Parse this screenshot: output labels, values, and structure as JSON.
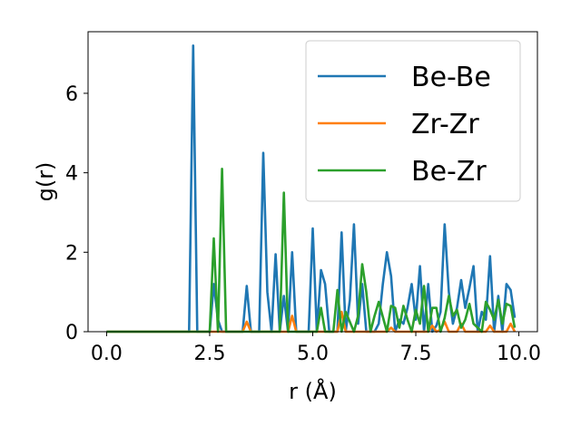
{
  "chart_data": {
    "type": "line",
    "title": "",
    "xlabel": "r (Å)",
    "ylabel": "g(r)",
    "xlim": [
      -0.45,
      10.45
    ],
    "ylim": [
      0,
      7.55
    ],
    "xticks": [
      "0.0",
      "2.5",
      "5.0",
      "7.5",
      "10.0"
    ],
    "xtick_values": [
      0,
      2.5,
      5,
      7.5,
      10
    ],
    "yticks": [
      "0",
      "2",
      "4",
      "6"
    ],
    "ytick_values": [
      0,
      2,
      4,
      6
    ],
    "grid": false,
    "legend_position": "top-right",
    "series": [
      {
        "name": "Be-Be",
        "color": "#1f77b4",
        "x": [
          0,
          2.0,
          2.1,
          2.2,
          2.5,
          2.6,
          2.7,
          2.8,
          3.3,
          3.4,
          3.5,
          3.7,
          3.8,
          3.9,
          4.0,
          4.1,
          4.2,
          4.3,
          4.4,
          4.5,
          4.6,
          4.9,
          5.0,
          5.1,
          5.2,
          5.3,
          5.4,
          5.6,
          5.7,
          5.8,
          5.9,
          6.0,
          6.1,
          6.2,
          6.3,
          6.4,
          6.5,
          6.6,
          6.7,
          6.8,
          6.9,
          7.0,
          7.1,
          7.2,
          7.3,
          7.4,
          7.5,
          7.6,
          7.7,
          7.8,
          7.9,
          8.0,
          8.1,
          8.2,
          8.3,
          8.4,
          8.5,
          8.6,
          8.7,
          8.8,
          8.9,
          9.0,
          9.1,
          9.2,
          9.3,
          9.4,
          9.5,
          9.6,
          9.7,
          9.8,
          9.9
        ],
        "y": [
          0,
          0,
          7.2,
          0,
          0,
          1.2,
          0.3,
          0,
          0,
          1.15,
          0,
          0,
          4.5,
          1.0,
          0,
          1.95,
          0,
          0.9,
          0,
          2.0,
          0,
          0,
          2.6,
          0,
          1.55,
          1.2,
          0,
          0,
          2.5,
          0,
          0.8,
          2.7,
          0.2,
          1.2,
          0,
          0,
          0,
          0.2,
          1.2,
          2.0,
          1.4,
          0,
          0.3,
          0.2,
          0.6,
          1.2,
          0.3,
          1.65,
          0,
          1.2,
          0,
          0.15,
          0.5,
          2.7,
          1.0,
          0.2,
          0.6,
          1.3,
          0.6,
          1.1,
          1.65,
          0,
          0.5,
          0.3,
          1.9,
          0,
          0.9,
          0,
          1.2,
          1.05,
          0.35
        ]
      },
      {
        "name": "Zr-Zr",
        "color": "#ff7f0e",
        "x": [
          0,
          3.3,
          3.4,
          3.5,
          4.4,
          4.5,
          4.6,
          5.6,
          5.7,
          5.8,
          6.8,
          6.9,
          7.0,
          7.8,
          7.9,
          8.0,
          8.1,
          8.2,
          8.3,
          8.5,
          8.6,
          8.7,
          9.2,
          9.3,
          9.4,
          9.7,
          9.8,
          9.9
        ],
        "y": [
          0,
          0,
          0.25,
          0,
          0,
          0.4,
          0,
          0,
          0.5,
          0,
          0,
          0.1,
          0,
          0,
          0.15,
          0,
          0.05,
          0.25,
          0,
          0,
          0.2,
          0,
          0,
          0.15,
          0,
          0,
          0.2,
          0
        ]
      },
      {
        "name": "Be-Zr",
        "color": "#2ca02c",
        "x": [
          0,
          2.5,
          2.6,
          2.7,
          2.8,
          2.9,
          4.2,
          4.3,
          4.4,
          5.1,
          5.2,
          5.3,
          5.5,
          5.6,
          5.7,
          5.8,
          6.0,
          6.1,
          6.2,
          6.3,
          6.4,
          6.5,
          6.6,
          6.8,
          6.9,
          7.0,
          7.1,
          7.2,
          7.3,
          7.4,
          7.5,
          7.6,
          7.7,
          7.8,
          7.9,
          8.0,
          8.1,
          8.2,
          8.3,
          8.4,
          8.5,
          8.6,
          8.7,
          8.8,
          8.9,
          9.0,
          9.1,
          9.2,
          9.3,
          9.4,
          9.5,
          9.6,
          9.7,
          9.8,
          9.9
        ],
        "y": [
          0,
          0,
          2.35,
          0,
          4.1,
          0,
          0,
          3.5,
          0,
          0,
          0.6,
          0,
          0,
          1.05,
          0,
          0.5,
          0,
          0.4,
          1.7,
          1.0,
          0,
          0.4,
          0.75,
          0,
          0.65,
          0.6,
          0.1,
          0.65,
          0.3,
          0,
          0.55,
          0.2,
          1.15,
          0,
          0.6,
          0.6,
          0,
          0.35,
          0.9,
          0.4,
          0.55,
          0.1,
          0.3,
          0.7,
          0.2,
          0.1,
          0,
          0.75,
          0.55,
          0.3,
          0.8,
          0.2,
          0.7,
          0.65,
          0.1
        ]
      }
    ]
  }
}
